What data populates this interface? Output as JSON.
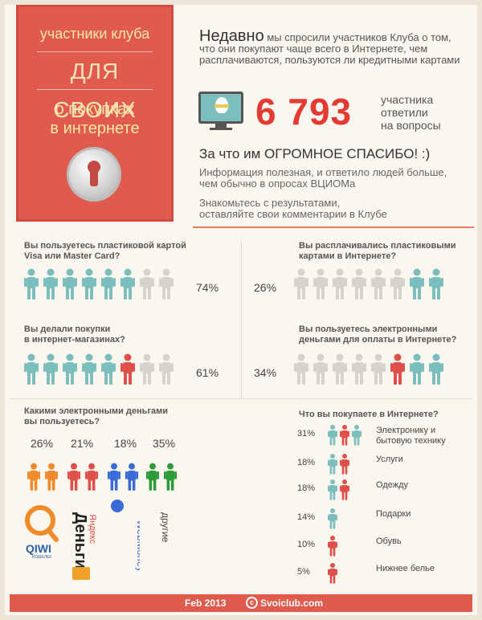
{
  "header": {
    "line1": "участники клуба",
    "line2": "ДЛЯ СВОИХ",
    "line3a": "о покупках",
    "line3b": "в интернете"
  },
  "intro": {
    "lead": "Недавно",
    "text": "мы спросили участников Клуба о том, что они покупают чаще всего в Интернете, чем расплачиваются, пользуются ли кредитными картами"
  },
  "stats": {
    "number": "6 793",
    "label_line1": "участника",
    "label_line2": "ответили",
    "label_line3": "на вопросы"
  },
  "thanks": "За что им ОГРОМНОЕ СПАСИБО! :)",
  "info1a": "Информация полезная, и ответило людей больше,",
  "info1b": "чем обычно в опросах ВЦИОМа",
  "info2a": "Знакомьтесь с результатами,",
  "info2b": "оставляйте свои комментарии в Клубе",
  "questions": [
    {
      "line1": "Вы пользуетесь пластиковой картой",
      "line2": "Visa или Master Card?",
      "pct": "74%",
      "filled": 6,
      "total": 8,
      "color": "#7cbdbd"
    },
    {
      "line1": "Вы расплачивались пластиковыми",
      "line2": "картами в Интернете?",
      "pct": "26%",
      "filled": 2,
      "total": 8,
      "color": "#7cbdbd"
    },
    {
      "line1": "Вы делали покупки",
      "line2": "в интернет-магазинах?",
      "pct": "61%",
      "filled": 6,
      "total": 8,
      "color": "#7cbdbd"
    },
    {
      "line1": "Вы пользуетесь электронными",
      "line2": "деньгами для оплаты в Интернете?",
      "pct": "34%",
      "filled": 3,
      "total": 8,
      "color": "#7cbdbd"
    }
  ],
  "money": {
    "title1": "Какими электронными деньгами",
    "title2": "вы пользуетесь?",
    "items": [
      {
        "pct": "26%",
        "color": "#f08a2a",
        "brand": "QIWI",
        "sub": "КОШЕЛЕК"
      },
      {
        "pct": "21%",
        "color": "#e0504a",
        "brand": "Яндекс Деньги",
        "sub": ""
      },
      {
        "pct": "18%",
        "color": "#3a6bd6",
        "brand": "WebMoney",
        "sub": ""
      },
      {
        "pct": "35%",
        "color": "#2e9a3a",
        "brand": "другие",
        "sub": ""
      }
    ]
  },
  "buy": {
    "title": "Что вы покупаете в Интернете?",
    "rows": [
      {
        "pct": "31%",
        "label1": "Электронику и",
        "label2": "бытовую технику",
        "icons": 3
      },
      {
        "pct": "18%",
        "label1": "Услуги",
        "label2": "",
        "icons": 2
      },
      {
        "pct": "18%",
        "label1": "Одежду",
        "label2": "",
        "icons": 2
      },
      {
        "pct": "14%",
        "label1": "Подарки",
        "label2": "",
        "icons": 1
      },
      {
        "pct": "10%",
        "label1": "Обувь",
        "label2": "",
        "icons": 1
      },
      {
        "pct": "5%",
        "label1": "Нижнее белье",
        "label2": "",
        "icons": 1
      }
    ]
  },
  "footer": {
    "date": "Feb 2013",
    "cc": "c",
    "site": "Svoiclub.com"
  },
  "colors": {
    "accent": "#e05a4e",
    "teal": "#7cbdbd",
    "red": "#e0504a",
    "grey": "#d7d3cb"
  }
}
